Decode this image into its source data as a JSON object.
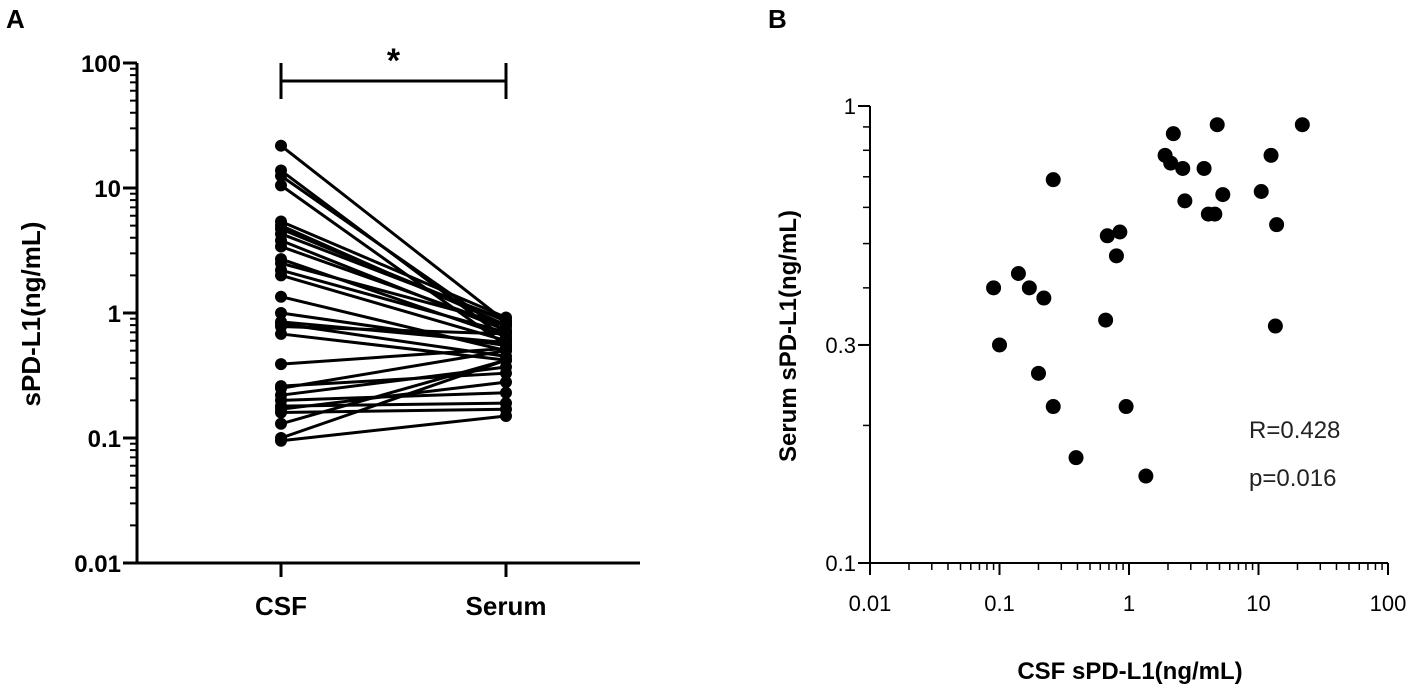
{
  "chart_data": [
    {
      "panel": "A",
      "type": "line",
      "categories": [
        "CSF",
        "Serum"
      ],
      "ylabel": "sPD-L1(ng/mL)",
      "xlabel": "",
      "yscale": "log",
      "ylim": [
        0.01,
        100
      ],
      "yticks": [
        "0.01",
        "0.1",
        "1",
        "10",
        "100"
      ],
      "significance": "*",
      "pairs": [
        [
          21.8,
          0.85
        ],
        [
          13.8,
          0.62
        ],
        [
          12.5,
          0.7
        ],
        [
          10.5,
          0.55
        ],
        [
          5.4,
          0.92
        ],
        [
          5.0,
          0.8
        ],
        [
          4.7,
          0.86
        ],
        [
          4.3,
          0.88
        ],
        [
          3.8,
          0.73
        ],
        [
          3.4,
          0.78
        ],
        [
          2.7,
          0.65
        ],
        [
          2.5,
          0.82
        ],
        [
          2.2,
          0.7
        ],
        [
          2.0,
          0.6
        ],
        [
          1.35,
          0.5
        ],
        [
          1.0,
          0.55
        ],
        [
          0.85,
          0.58
        ],
        [
          0.82,
          0.45
        ],
        [
          0.78,
          0.68
        ],
        [
          0.68,
          0.42
        ],
        [
          0.39,
          0.52
        ],
        [
          0.26,
          0.33
        ],
        [
          0.25,
          0.5
        ],
        [
          0.22,
          0.37
        ],
        [
          0.2,
          0.23
        ],
        [
          0.18,
          0.19
        ],
        [
          0.17,
          0.28
        ],
        [
          0.16,
          0.17
        ],
        [
          0.13,
          0.42
        ],
        [
          0.1,
          0.42
        ],
        [
          0.095,
          0.15
        ]
      ]
    },
    {
      "panel": "B",
      "type": "scatter",
      "xlabel": "CSF sPD-L1(ng/mL)",
      "ylabel": "Serum sPD-L1(ng/mL)",
      "xscale": "log",
      "yscale": "log",
      "xlim": [
        0.01,
        100
      ],
      "ylim": [
        0.1,
        1
      ],
      "xticks": [
        "0.01",
        "0.1",
        "1",
        "10",
        "100"
      ],
      "yticks": [
        "0.1",
        "0.3",
        "1"
      ],
      "annotations": [
        "R=0.428",
        "p=0.016"
      ],
      "points": [
        [
          0.09,
          0.4
        ],
        [
          0.1,
          0.3
        ],
        [
          0.14,
          0.43
        ],
        [
          0.17,
          0.4
        ],
        [
          0.2,
          0.26
        ],
        [
          0.22,
          0.38
        ],
        [
          0.26,
          0.22
        ],
        [
          0.26,
          0.69
        ],
        [
          0.39,
          0.17
        ],
        [
          0.66,
          0.34
        ],
        [
          0.68,
          0.52
        ],
        [
          0.8,
          0.47
        ],
        [
          0.85,
          0.53
        ],
        [
          0.95,
          0.22
        ],
        [
          1.35,
          0.155
        ],
        [
          1.9,
          0.78
        ],
        [
          2.1,
          0.75
        ],
        [
          2.2,
          0.87
        ],
        [
          2.6,
          0.73
        ],
        [
          2.7,
          0.62
        ],
        [
          3.8,
          0.73
        ],
        [
          4.1,
          0.58
        ],
        [
          4.6,
          0.58
        ],
        [
          4.8,
          0.91
        ],
        [
          5.3,
          0.64
        ],
        [
          10.5,
          0.65
        ],
        [
          12.5,
          0.78
        ],
        [
          13.5,
          0.33
        ],
        [
          13.8,
          0.55
        ],
        [
          21.8,
          0.91
        ]
      ]
    }
  ],
  "panel_labels": {
    "a": "A",
    "b": "B"
  }
}
